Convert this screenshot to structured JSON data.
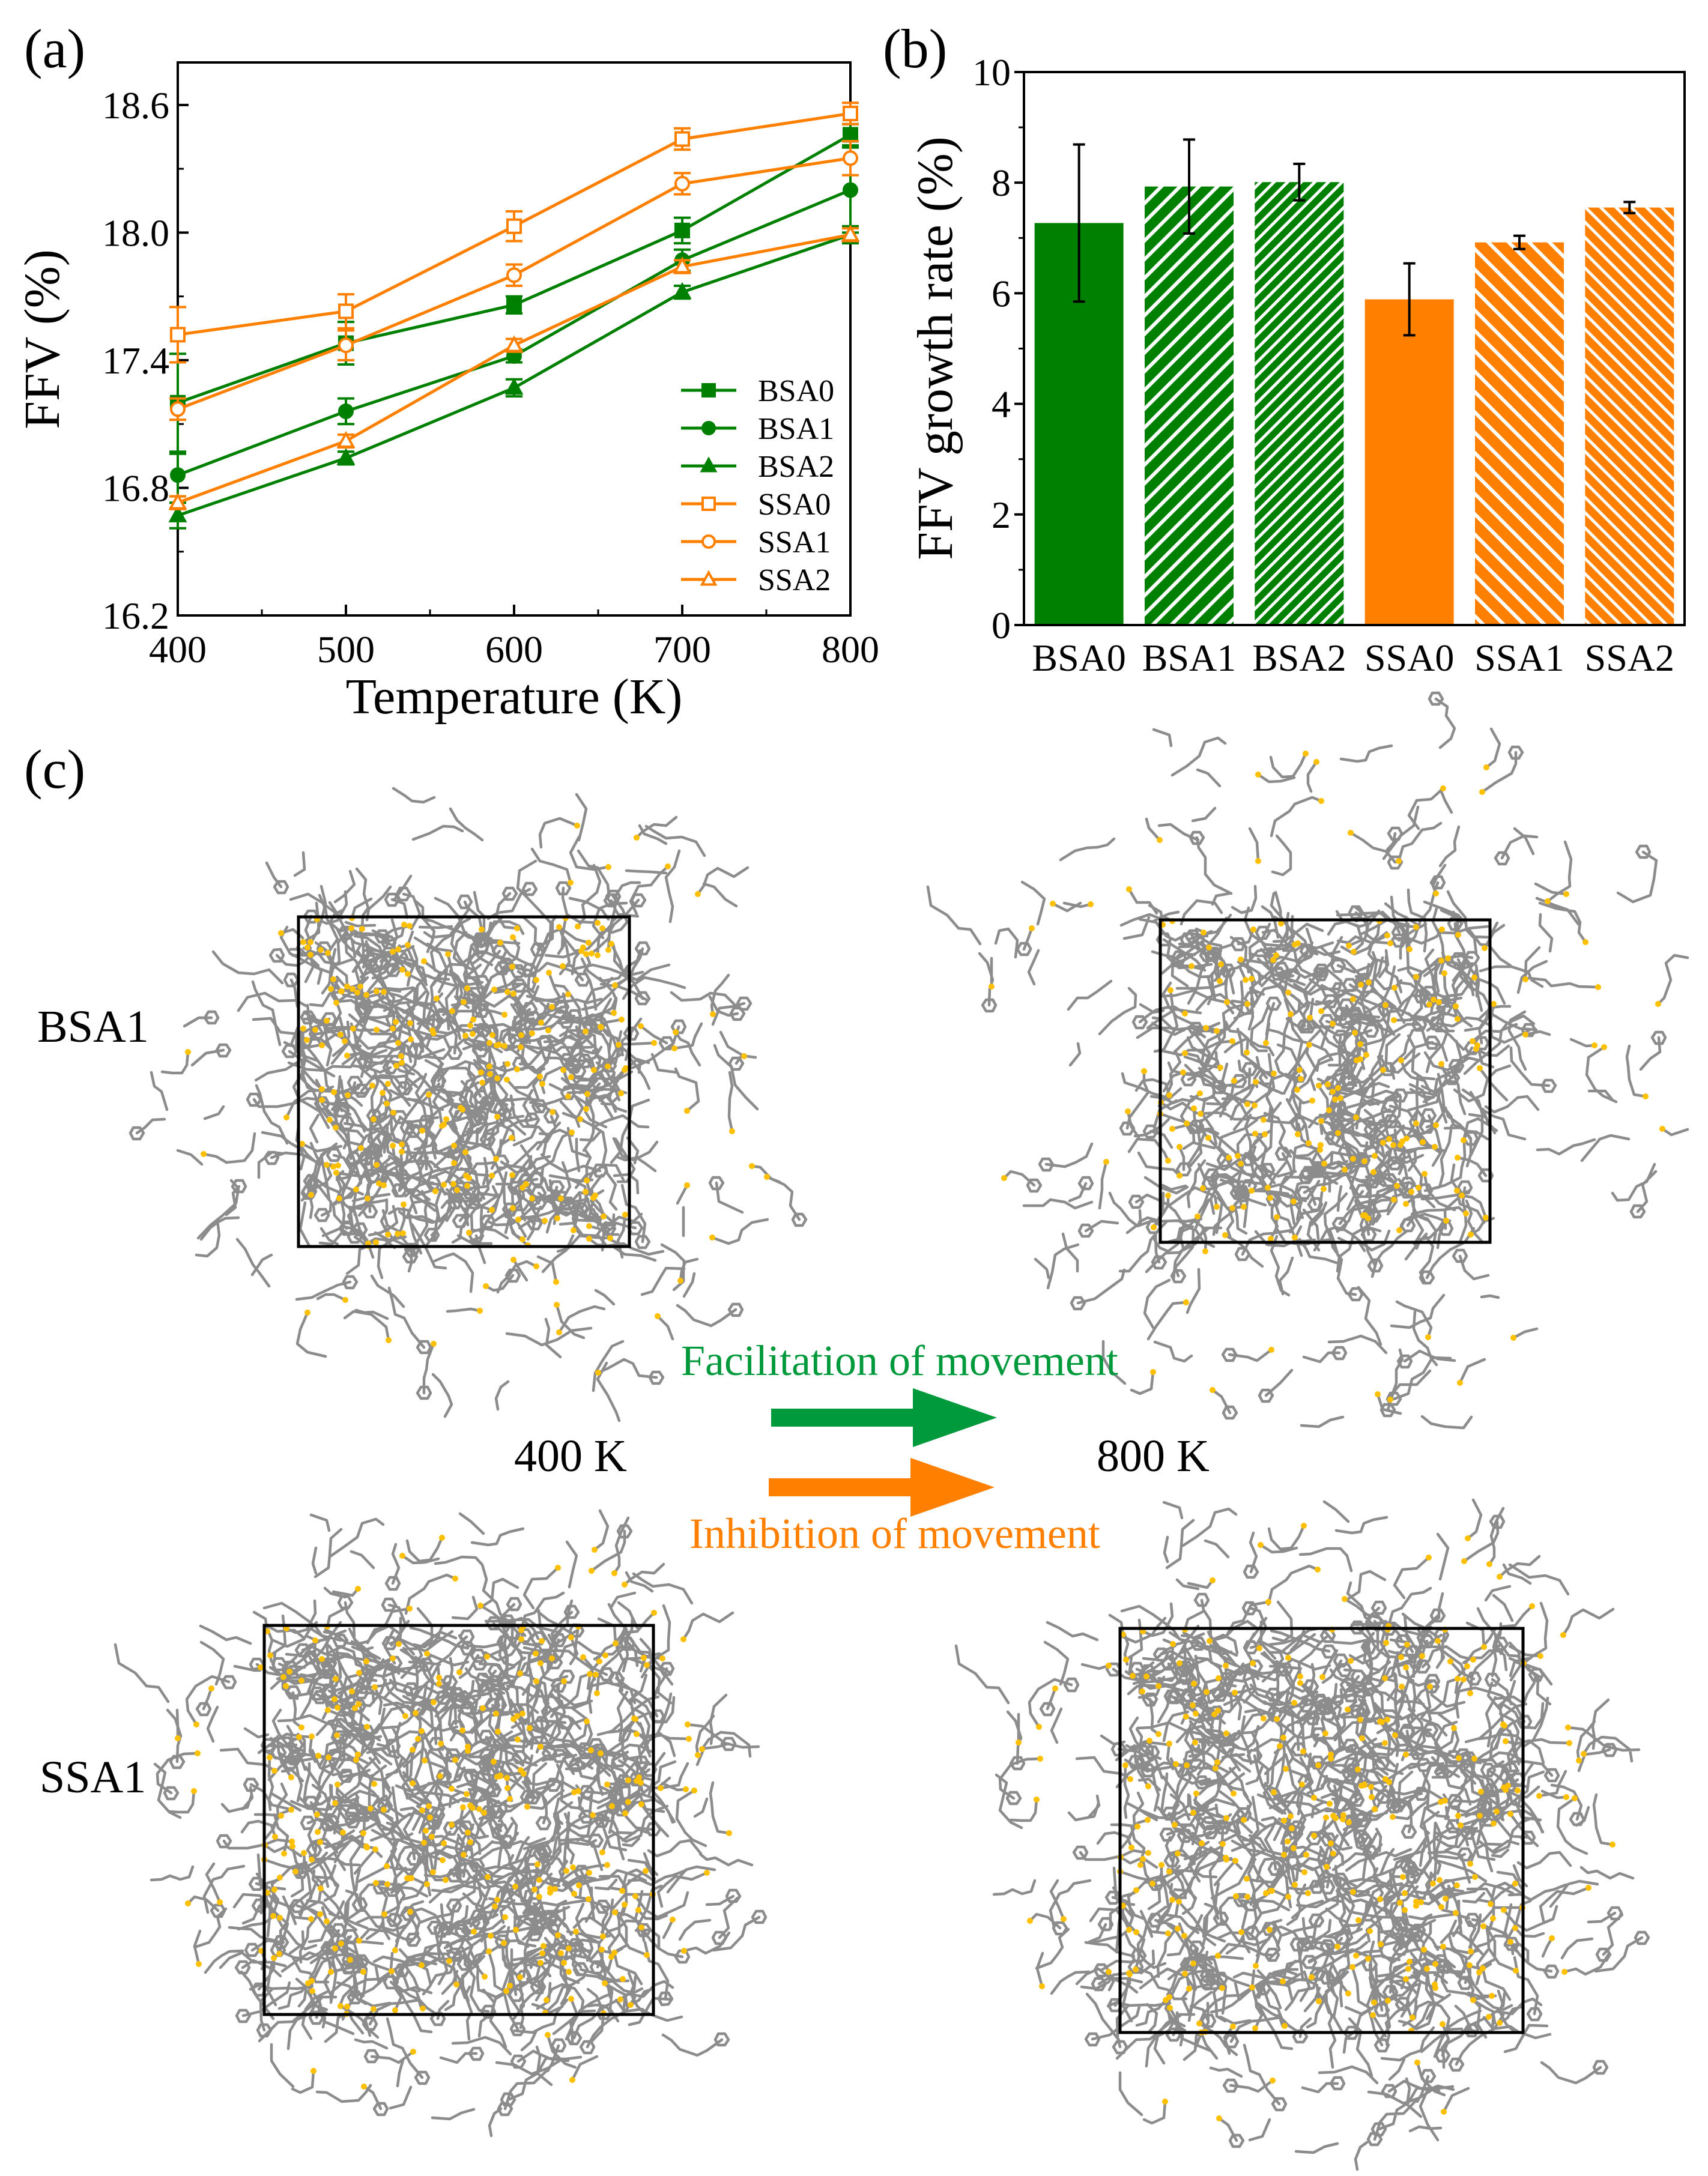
{
  "chart_data": [
    {
      "type": "line",
      "panel_label": "(a)",
      "xlabel": "Temperature (K)",
      "ylabel": "FFV (%)",
      "x": [
        400,
        500,
        600,
        700,
        800
      ],
      "xlim": [
        400,
        800
      ],
      "ylim": [
        16.2,
        18.8
      ],
      "xtick_values": [
        400,
        500,
        600,
        700,
        800
      ],
      "xtick_labels": [
        "400",
        "500",
        "600",
        "700",
        "800"
      ],
      "ytick_values": [
        16.2,
        16.8,
        17.4,
        18.0,
        18.6
      ],
      "ytick_labels": [
        "16.2",
        "16.8",
        "17.4",
        "18.0",
        "18.6"
      ],
      "grid": false,
      "legend_position": "bottom-right",
      "series": [
        {
          "name": "BSA0",
          "color": "#008000",
          "marker": "square",
          "filled": true,
          "values": [
            17.2,
            17.48,
            17.66,
            18.01,
            18.46
          ],
          "errors": [
            0.23,
            0.1,
            0.04,
            0.06,
            0.05
          ]
        },
        {
          "name": "BSA1",
          "color": "#008000",
          "marker": "circle",
          "filled": true,
          "values": [
            16.86,
            17.16,
            17.42,
            17.87,
            18.2
          ],
          "errors": [
            0.1,
            0.06,
            0.03,
            0.05,
            0.2
          ]
        },
        {
          "name": "BSA2",
          "color": "#008000",
          "marker": "triangle",
          "filled": true,
          "values": [
            16.67,
            16.94,
            17.27,
            17.72,
            17.99
          ],
          "errors": [
            0.06,
            0.03,
            0.04,
            0.03,
            0.04
          ]
        },
        {
          "name": "SSA0",
          "color": "#ff8000",
          "marker": "square",
          "filled": false,
          "values": [
            17.52,
            17.63,
            18.03,
            18.44,
            18.56
          ],
          "errors": [
            0.13,
            0.08,
            0.07,
            0.05,
            0.05
          ]
        },
        {
          "name": "SSA1",
          "color": "#ff8000",
          "marker": "circle",
          "filled": false,
          "values": [
            17.17,
            17.47,
            17.8,
            18.23,
            18.35
          ],
          "errors": [
            0.05,
            0.07,
            0.05,
            0.05,
            0.08
          ]
        },
        {
          "name": "SSA2",
          "color": "#ff8000",
          "marker": "triangle",
          "filled": false,
          "values": [
            16.73,
            17.02,
            17.47,
            17.84,
            17.99
          ],
          "errors": [
            0.03,
            0.03,
            0.03,
            0.03,
            0.03
          ]
        }
      ]
    },
    {
      "type": "bar",
      "panel_label": "(b)",
      "xlabel": "",
      "ylabel": "FFV growth rate (%)",
      "categories": [
        "BSA0",
        "BSA1",
        "BSA2",
        "SSA0",
        "SSA1",
        "SSA2"
      ],
      "values": [
        7.27,
        7.93,
        8.01,
        5.89,
        6.92,
        7.55
      ],
      "errors": [
        1.42,
        0.85,
        0.33,
        0.65,
        0.12,
        0.1
      ],
      "colors": [
        "#008000",
        "#008000",
        "#008000",
        "#ff8000",
        "#ff8000",
        "#ff8000"
      ],
      "fill_styles": [
        "solid",
        "hatch-forward",
        "hatch-forward-dense",
        "solid",
        "hatch-back",
        "hatch-back-dense"
      ],
      "ylim": [
        0,
        10
      ],
      "ytick_values": [
        0,
        2,
        4,
        6,
        8,
        10
      ],
      "ytick_labels": [
        "0",
        "2",
        "4",
        "6",
        "8",
        "10"
      ],
      "grid": false
    }
  ],
  "panel_c": {
    "label": "(c)",
    "row_labels": [
      "BSA1",
      "SSA1"
    ],
    "temperature_labels": [
      "400 K",
      "800 K"
    ],
    "facilitation_text": "Facilitation of movement",
    "inhibition_text": "Inhibition of movement",
    "facilitation_color": "#009a3c",
    "inhibition_color": "#ff8000",
    "molecule_color": "#8c8c8c",
    "atom_highlight_color": "#ffc000"
  }
}
